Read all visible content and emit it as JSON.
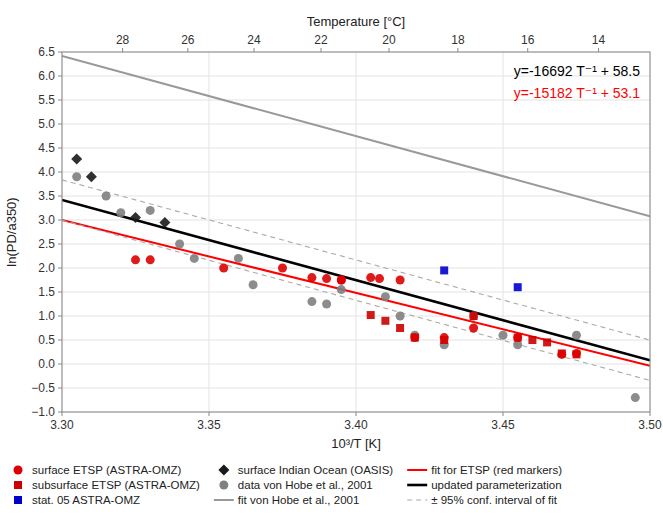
{
  "chart_data": {
    "type": "scatter",
    "xlabel": "10³/T [K]",
    "ylabel": "ln(PD/a350)",
    "x2label": "Temperature [°C]",
    "xlim": [
      3.3,
      3.5
    ],
    "ylim": [
      -1.0,
      6.5
    ],
    "x2lim": [
      3.3,
      3.5
    ],
    "xticks": [
      {
        "value": 3.3,
        "label": "3.30"
      },
      3.35,
      {
        "value": 3.4,
        "label": "3.40"
      },
      3.45,
      {
        "value": 3.5,
        "label": "3.50"
      }
    ],
    "yticks": [
      {
        "value": -1.0,
        "label": "−1.0"
      },
      {
        "value": -0.5,
        "label": "−0.5"
      },
      {
        "value": 0.0,
        "label": "0.0"
      },
      0.5,
      {
        "value": 1.0,
        "label": "1.0"
      },
      1.5,
      {
        "value": 2.0,
        "label": "2.0"
      },
      2.5,
      {
        "value": 3.0,
        "label": "3.0"
      },
      3.5,
      {
        "value": 4.0,
        "label": "4.0"
      },
      4.5,
      {
        "value": 5.0,
        "label": "5.0"
      },
      5.5,
      {
        "value": 6.0,
        "label": "6.0"
      },
      6.5
    ],
    "x2ticks": [
      {
        "value": 3.3206043,
        "label": "28"
      },
      {
        "value": 3.3428046,
        "label": "26"
      },
      {
        "value": 3.3653037,
        "label": "24"
      },
      {
        "value": 3.3881077,
        "label": "22"
      },
      {
        "value": 3.4112229,
        "label": "20"
      },
      {
        "value": 3.4346557,
        "label": "18"
      },
      {
        "value": 3.4584126,
        "label": "16"
      },
      {
        "value": 3.4825004,
        "label": "14"
      }
    ],
    "grid": true,
    "legend": "lower left",
    "annotations": [
      {
        "text": "y=-16692 T⁻¹ + 58.5",
        "color": "#000000"
      },
      {
        "text": "y=-15182 T⁻¹ + 53.1",
        "color": "#ff0000"
      }
    ],
    "series": [
      {
        "name": "surface ETSP (ASTRA-OMZ)",
        "type": "scatter",
        "marker": "circle",
        "color": "#dd0000",
        "x": [
          3.325,
          3.33,
          3.355,
          3.375,
          3.385,
          3.39,
          3.395,
          3.395,
          3.405,
          3.408,
          3.415,
          3.42,
          3.43,
          3.44,
          3.455,
          3.47,
          3.475
        ],
        "values": [
          2.17,
          2.17,
          2.0,
          2.0,
          1.8,
          1.78,
          1.75,
          1.75,
          1.8,
          1.78,
          1.75,
          0.55,
          0.55,
          0.75,
          0.55,
          0.2,
          0.22
        ]
      },
      {
        "name": "subsurface ETSP (ASTRA-OMZ)",
        "type": "scatter",
        "marker": "square",
        "color": "#cc0000",
        "x": [
          3.405,
          3.41,
          3.415,
          3.42,
          3.43,
          3.44,
          3.455,
          3.46,
          3.465,
          3.47,
          3.475
        ],
        "values": [
          1.02,
          0.9,
          0.75,
          0.55,
          0.5,
          1.0,
          0.55,
          0.5,
          0.45,
          0.22,
          0.2
        ]
      },
      {
        "name": "stat. 05 ASTRA-OMZ",
        "type": "scatter",
        "marker": "square",
        "color": "#0000cc",
        "x": [
          3.43,
          3.455
        ],
        "values": [
          1.95,
          1.6
        ]
      },
      {
        "name": "surface Indian Ocean (OASIS)",
        "type": "scatter",
        "marker": "diamond",
        "color": "#1a1a1a",
        "x": [
          3.305,
          3.31,
          3.325,
          3.335
        ],
        "values": [
          4.27,
          3.9,
          3.05,
          2.95
        ]
      },
      {
        "name": "data von Hobe et al., 2001",
        "type": "scatter",
        "marker": "circle",
        "color": "#808080",
        "x": [
          3.305,
          3.315,
          3.32,
          3.33,
          3.34,
          3.345,
          3.36,
          3.365,
          3.385,
          3.39,
          3.395,
          3.41,
          3.415,
          3.42,
          3.43,
          3.44,
          3.45,
          3.455,
          3.475,
          3.495
        ],
        "values": [
          3.9,
          3.5,
          3.15,
          3.2,
          2.5,
          2.2,
          2.2,
          1.65,
          1.3,
          1.25,
          1.55,
          1.4,
          1.0,
          0.6,
          0.4,
          1.0,
          0.6,
          0.4,
          0.6,
          -0.7
        ]
      },
      {
        "name": "fit von Hobe et al., 2001",
        "type": "line",
        "line_style": "solid",
        "color": "#999999",
        "x": [
          3.3,
          3.5
        ],
        "values": [
          6.4164,
          3.078
        ]
      },
      {
        "name": "fit for ETSP (red markers)",
        "type": "line",
        "line_style": "solid",
        "color": "#ff0000",
        "x": [
          3.3,
          3.5
        ],
        "values": [
          2.9994,
          -0.037
        ]
      },
      {
        "name": "updated parameterization",
        "type": "line",
        "line_style": "solid",
        "color": "#000000",
        "x": [
          3.3,
          3.5
        ],
        "values": [
          3.4164,
          0.078
        ]
      },
      {
        "name": "± 95% conf. interval of fit",
        "type": "line",
        "line_style": "dashed",
        "color": "#aaaaaa",
        "x": [
          3.3,
          3.5
        ],
        "values": [
          3.8364,
          0.498
        ]
      },
      {
        "type": "line",
        "line_style": "dashed",
        "color": "#aaaaaa",
        "x": [
          3.3,
          3.5
        ],
        "values": [
          2.9964,
          -0.342
        ]
      }
    ]
  }
}
